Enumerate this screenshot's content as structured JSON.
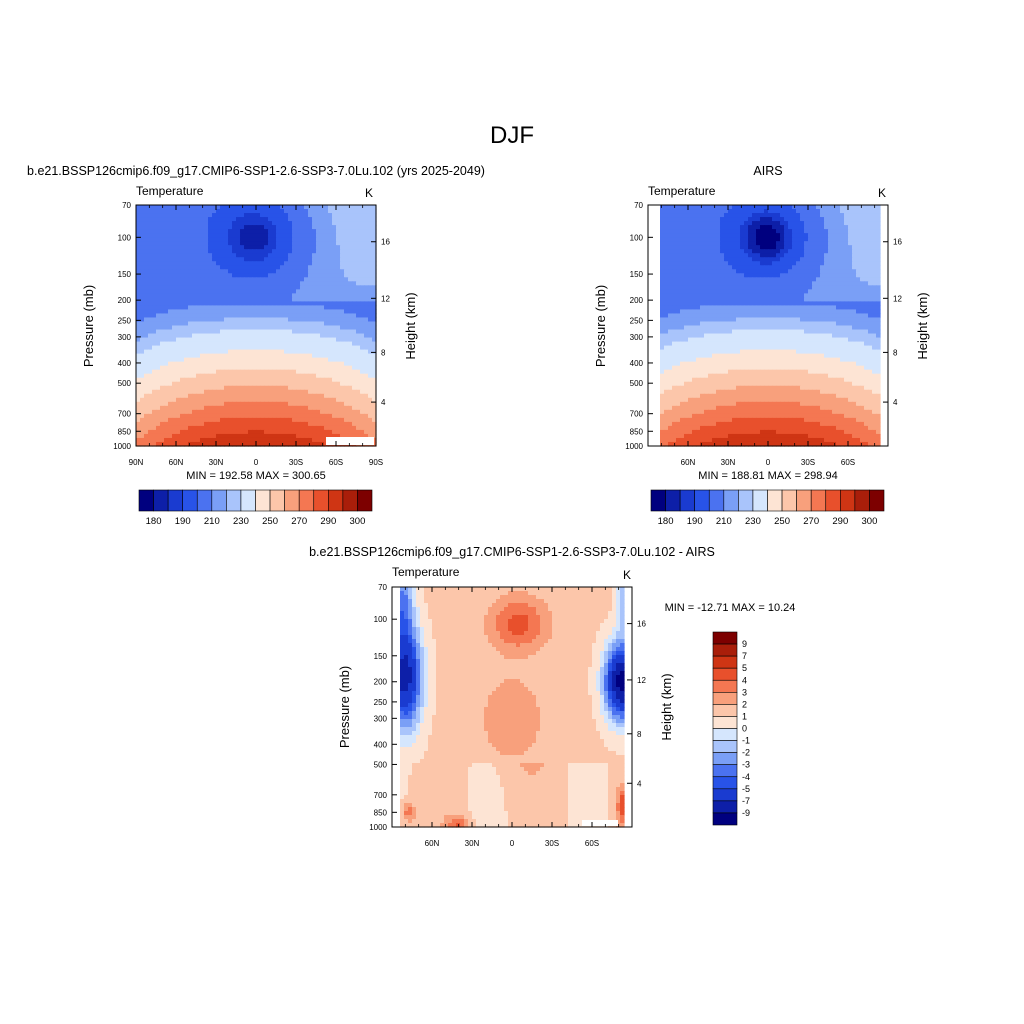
{
  "figure": {
    "title": "DJF"
  },
  "colors": {
    "abs_fill": [
      "#00007f",
      "#0d1fa8",
      "#1a3bd0",
      "#2853e8",
      "#4b72f0",
      "#7a9ff6",
      "#a9c4fb",
      "#d5e6fd",
      "#fde4d4",
      "#fcc6aa",
      "#f8a07c",
      "#f47752",
      "#e8502c",
      "#cf3514",
      "#a91e0a",
      "#7d0000"
    ],
    "diff_fill": [
      "#00007f",
      "#0d1fa8",
      "#1a3bd0",
      "#2853e8",
      "#4b72f0",
      "#7a9ff6",
      "#a9c4fb",
      "#d5e6fd",
      "#fde4d4",
      "#fcc6aa",
      "#f8a07c",
      "#f47752",
      "#e8502c",
      "#cf3514",
      "#a91e0a",
      "#7d0000"
    ]
  },
  "chart_data": [
    {
      "type": "heatmap",
      "title": "b.e21.BSSP126cmip6.f09_g17.CMIP6-SSP1-2.6-SSP3-7.0Lu.102 (yrs 2025-2049)",
      "left_string": "Temperature",
      "right_string": "K",
      "ylabel": "Pressure (mb)",
      "ylabel_right": "Height (km)",
      "x_ticks": [
        "90N",
        "60N",
        "30N",
        "0",
        "30S",
        "60S",
        "90S"
      ],
      "y_ticks": [
        "70",
        "100",
        "150",
        "200",
        "250",
        "300",
        "400",
        "500",
        "700",
        "850",
        "1000"
      ],
      "y_right_ticks": [
        "4",
        "8",
        "12",
        "16"
      ],
      "y_scale": "log",
      "ylim": [
        1000,
        70
      ],
      "stats": "MIN = 192.58  MAX = 300.65",
      "min": 192.58,
      "max": 300.65,
      "colorbar_orientation": "horizontal",
      "colorbar_labels": [
        "180",
        "190",
        "210",
        "230",
        "250",
        "270",
        "290",
        "300"
      ]
    },
    {
      "type": "heatmap",
      "title": "AIRS",
      "left_string": "Temperature",
      "right_string": "K",
      "ylabel": "Pressure (mb)",
      "ylabel_right": "Height (km)",
      "x_ticks": [
        "60N",
        "30N",
        "0",
        "30S",
        "60S"
      ],
      "y_ticks": [
        "70",
        "100",
        "150",
        "200",
        "250",
        "300",
        "400",
        "500",
        "700",
        "850",
        "1000"
      ],
      "y_right_ticks": [
        "4",
        "8",
        "12",
        "16"
      ],
      "y_scale": "log",
      "ylim": [
        1000,
        70
      ],
      "stats": "MIN = 188.81  MAX = 298.94",
      "min": 188.81,
      "max": 298.94,
      "colorbar_orientation": "horizontal",
      "colorbar_labels": [
        "180",
        "190",
        "210",
        "230",
        "250",
        "270",
        "290",
        "300"
      ]
    },
    {
      "type": "heatmap",
      "title": "b.e21.BSSP126cmip6.f09_g17.CMIP6-SSP1-2.6-SSP3-7.0Lu.102 - AIRS",
      "left_string": "Temperature",
      "right_string": "K",
      "ylabel": "Pressure (mb)",
      "ylabel_right": "Height (km)",
      "x_ticks": [
        "60N",
        "30N",
        "0",
        "30S",
        "60S"
      ],
      "y_ticks": [
        "70",
        "100",
        "150",
        "200",
        "250",
        "300",
        "400",
        "500",
        "700",
        "850",
        "1000"
      ],
      "y_right_ticks": [
        "4",
        "8",
        "12",
        "16"
      ],
      "y_scale": "log",
      "ylim": [
        1000,
        70
      ],
      "stats": "MIN = -12.71  MAX =  10.24",
      "min": -12.71,
      "max": 10.24,
      "colorbar_orientation": "vertical",
      "colorbar_labels": [
        "9",
        "7",
        "5",
        "4",
        "3",
        "2",
        "1",
        "0",
        "-1",
        "-2",
        "-3",
        "-4",
        "-5",
        "-7",
        "-9"
      ]
    }
  ]
}
